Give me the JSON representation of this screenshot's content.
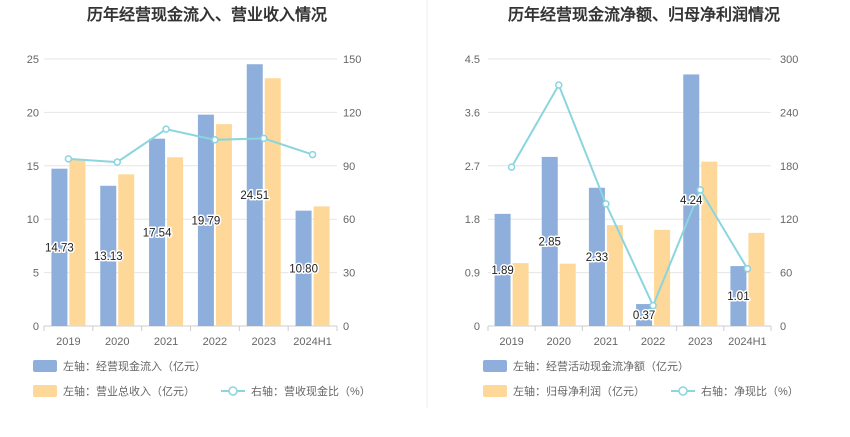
{
  "chart_data": [
    {
      "type": "bar",
      "title": "历年经营现金流入、营业收入情况",
      "categories": [
        "2019",
        "2020",
        "2021",
        "2022",
        "2023",
        "2024H1"
      ],
      "left_axis": {
        "min": 0,
        "max": 25,
        "ticks": [
          "0",
          "5",
          "10",
          "15",
          "20",
          "25"
        ]
      },
      "right_axis": {
        "min": 0,
        "max": 150,
        "ticks": [
          "0",
          "30",
          "60",
          "90",
          "120",
          "150"
        ]
      },
      "series": [
        {
          "name": "左轴：经营现金流入（亿元）",
          "type": "bar",
          "axis": "left",
          "color": "#8eaedb",
          "values": [
            14.73,
            13.13,
            17.54,
            19.79,
            24.51,
            10.8
          ],
          "labels": [
            "14.73",
            "13.13",
            "17.54",
            "19.79",
            "24.51",
            "10.80"
          ]
        },
        {
          "name": "左轴：营业总收入（亿元）",
          "type": "bar",
          "axis": "left",
          "color": "#fed898",
          "values": [
            15.6,
            14.2,
            15.8,
            18.9,
            23.2,
            11.2
          ]
        },
        {
          "name": "右轴：营收现金比（%）",
          "type": "line",
          "axis": "right",
          "color": "#8ad5df",
          "values": [
            93.9,
            92.1,
            110.6,
            104.6,
            105.4,
            96.3
          ]
        }
      ]
    },
    {
      "type": "bar",
      "title": "历年经营现金流净额、归母净利润情况",
      "categories": [
        "2019",
        "2020",
        "2021",
        "2022",
        "2023",
        "2024H1"
      ],
      "left_axis": {
        "min": 0,
        "max": 4.5,
        "ticks": [
          "0",
          "0.9",
          "1.8",
          "2.7",
          "3.6",
          "4.5"
        ]
      },
      "right_axis": {
        "min": 0,
        "max": 300,
        "ticks": [
          "0",
          "60",
          "120",
          "180",
          "240",
          "300"
        ]
      },
      "series": [
        {
          "name": "左轴：经营活动现金流净额（亿元）",
          "type": "bar",
          "axis": "left",
          "color": "#8eaedb",
          "values": [
            1.89,
            2.85,
            2.33,
            0.37,
            4.24,
            1.01
          ],
          "labels": [
            "1.89",
            "2.85",
            "2.33",
            "0.37",
            "4.24",
            "1.01"
          ]
        },
        {
          "name": "左轴：归母净利润（亿元）",
          "type": "bar",
          "axis": "left",
          "color": "#fed898",
          "values": [
            1.06,
            1.05,
            1.7,
            1.62,
            2.77,
            1.57
          ]
        },
        {
          "name": "右轴：净现比（%）",
          "type": "line",
          "axis": "right",
          "color": "#8ad5df",
          "values": [
            178.5,
            270.8,
            137.2,
            22.9,
            152.9,
            64.4
          ]
        }
      ]
    }
  ]
}
